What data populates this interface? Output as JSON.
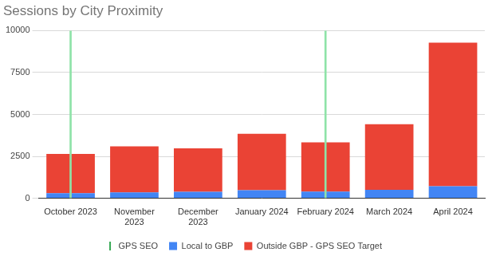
{
  "chart_data": {
    "type": "bar",
    "title": "Sessions by City Proximity",
    "categories": [
      "October 2023",
      "November 2023",
      "December 2023",
      "January 2024",
      "February 2024",
      "March 2024",
      "April 2024"
    ],
    "stacked": true,
    "series": [
      {
        "name": "GPS SEO",
        "type": "vline",
        "color": "#34a853",
        "values": [
          10000,
          null,
          null,
          null,
          10000,
          null,
          null
        ]
      },
      {
        "name": "Local to GBP",
        "color": "#4285f4",
        "values": [
          300,
          350,
          380,
          480,
          400,
          500,
          720
        ]
      },
      {
        "name": "Outside GBP - GPS SEO Target",
        "color": "#ea4335",
        "values": [
          2350,
          2750,
          2600,
          3370,
          2930,
          3920,
          8560
        ]
      }
    ],
    "ylim": [
      0,
      10000
    ],
    "yticks": [
      0,
      2500,
      5000,
      7500,
      10000
    ],
    "grid": true,
    "legend": "bottom"
  }
}
